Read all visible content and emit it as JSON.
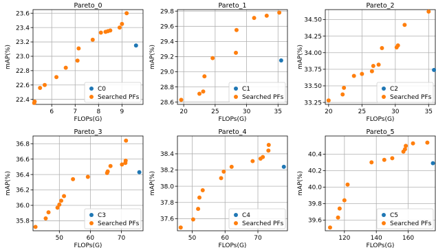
{
  "chart_data": [
    {
      "type": "scatter",
      "title": "Pareto_0",
      "xlabel": "FLOPs(G)",
      "ylabel": "mAP(%)",
      "xlim": [
        5.2,
        9.9
      ],
      "ylim": [
        22.33,
        23.65
      ],
      "xticks": [
        6,
        7,
        8,
        9
      ],
      "yticks": [
        22.4,
        22.6,
        22.8,
        23.0,
        23.2,
        23.4,
        23.6
      ],
      "ytick_labels": [
        "22.4",
        "22.6",
        "22.8",
        "23.0",
        "23.2",
        "23.4",
        "23.6"
      ],
      "grid": true,
      "legend_position": "lower right",
      "series": [
        {
          "name": "C0",
          "color": "#1f77b4",
          "points": [
            [
              9.6,
              23.15
            ]
          ]
        },
        {
          "name": "Searched PFs",
          "color": "#ff7f0e",
          "points": [
            [
              5.25,
              22.35
            ],
            [
              5.27,
              22.37
            ],
            [
              5.5,
              22.56
            ],
            [
              5.7,
              22.6
            ],
            [
              6.2,
              22.71
            ],
            [
              6.6,
              22.84
            ],
            [
              7.1,
              22.94
            ],
            [
              7.15,
              23.11
            ],
            [
              7.75,
              23.23
            ],
            [
              8.1,
              23.33
            ],
            [
              8.3,
              23.34
            ],
            [
              8.4,
              23.35
            ],
            [
              8.5,
              23.36
            ],
            [
              8.9,
              23.4
            ],
            [
              9.0,
              23.45
            ],
            [
              9.2,
              23.6
            ]
          ]
        }
      ]
    },
    {
      "type": "scatter",
      "title": "Pareto_1",
      "xlabel": "FLOPs(G)",
      "ylabel": "mAP(%)",
      "xlim": [
        19,
        36.5
      ],
      "ylim": [
        28.57,
        29.82
      ],
      "xticks": [
        20,
        25,
        30,
        35
      ],
      "yticks": [
        28.6,
        28.8,
        29.0,
        29.2,
        29.4,
        29.6,
        29.8
      ],
      "ytick_labels": [
        "28.6",
        "28.8",
        "29.0",
        "29.2",
        "29.4",
        "29.6",
        "29.8"
      ],
      "grid": true,
      "legend_position": "lower right",
      "series": [
        {
          "name": "C1",
          "color": "#1f77b4",
          "points": [
            [
              35.5,
              29.15
            ]
          ]
        },
        {
          "name": "Searched PFs",
          "color": "#ff7f0e",
          "points": [
            [
              19.6,
              28.63
            ],
            [
              22.5,
              28.71
            ],
            [
              23.1,
              28.74
            ],
            [
              23.3,
              28.94
            ],
            [
              24.6,
              29.18
            ],
            [
              28.3,
              29.25
            ],
            [
              28.4,
              29.55
            ],
            [
              31.2,
              29.71
            ],
            [
              33.2,
              29.74
            ],
            [
              35.2,
              29.78
            ]
          ]
        }
      ]
    },
    {
      "type": "scatter",
      "title": "Pareto_2",
      "xlabel": "FLOPs(G)",
      "ylabel": "mAP(%)",
      "xlim": [
        19.5,
        36
      ],
      "ylim": [
        33.22,
        34.65
      ],
      "xticks": [
        20,
        25,
        30,
        35
      ],
      "yticks": [
        33.25,
        33.5,
        33.75,
        34.0,
        34.25,
        34.5
      ],
      "ytick_labels": [
        "33.25",
        "33.50",
        "33.75",
        "34.00",
        "34.25",
        "34.50"
      ],
      "grid": true,
      "legend_position": "lower right",
      "series": [
        {
          "name": "C2",
          "color": "#1f77b4",
          "points": [
            [
              35.8,
              33.74
            ]
          ]
        },
        {
          "name": "Searched PFs",
          "color": "#ff7f0e",
          "points": [
            [
              20.0,
              33.28
            ],
            [
              22.1,
              33.37
            ],
            [
              22.3,
              33.47
            ],
            [
              23.8,
              33.65
            ],
            [
              25.0,
              33.68
            ],
            [
              26.5,
              33.72
            ],
            [
              26.7,
              33.8
            ],
            [
              27.5,
              33.82
            ],
            [
              28.0,
              34.07
            ],
            [
              30.2,
              34.08
            ],
            [
              30.4,
              34.11
            ],
            [
              31.4,
              34.42
            ],
            [
              35.0,
              34.62
            ]
          ]
        }
      ]
    },
    {
      "type": "scatter",
      "title": "Pareto_3",
      "xlabel": "FLOPs(G)",
      "ylabel": "mAP(%)",
      "xlim": [
        41.5,
        77
      ],
      "ylim": [
        35.67,
        36.9
      ],
      "xticks": [
        50,
        60,
        70
      ],
      "yticks": [
        35.8,
        36.0,
        36.2,
        36.4,
        36.6,
        36.8
      ],
      "ytick_labels": [
        "35.8",
        "36.0",
        "36.2",
        "36.4",
        "36.6",
        "36.8"
      ],
      "grid": true,
      "legend_position": "lower right",
      "series": [
        {
          "name": "C3",
          "color": "#1f77b4",
          "points": [
            [
              75.8,
              36.43
            ]
          ]
        },
        {
          "name": "Searched PFs",
          "color": "#ff7f0e",
          "points": [
            [
              42.3,
              35.72
            ],
            [
              45.6,
              35.83
            ],
            [
              46.5,
              35.91
            ],
            [
              49.4,
              35.97
            ],
            [
              50.0,
              36.01
            ],
            [
              50.6,
              36.06
            ],
            [
              51.5,
              36.12
            ],
            [
              54.4,
              36.34
            ],
            [
              59.2,
              36.37
            ],
            [
              65.4,
              36.42
            ],
            [
              65.6,
              36.44
            ],
            [
              66.5,
              36.51
            ],
            [
              70.2,
              36.53
            ],
            [
              71.3,
              36.55
            ],
            [
              71.4,
              36.58
            ],
            [
              71.5,
              36.84
            ]
          ]
        }
      ]
    },
    {
      "type": "scatter",
      "title": "Pareto_4",
      "xlabel": "FLOPs(G)",
      "ylabel": "mAP(%)",
      "xlim": [
        45.5,
        79
      ],
      "ylim": [
        37.45,
        38.62
      ],
      "xticks": [
        50,
        60,
        70
      ],
      "yticks": [
        37.6,
        37.8,
        38.0,
        38.2,
        38.4
      ],
      "ytick_labels": [
        "37.6",
        "37.8",
        "38.0",
        "38.2",
        "38.4"
      ],
      "grid": true,
      "legend_position": "lower right",
      "series": [
        {
          "name": "C4",
          "color": "#1f77b4",
          "points": [
            [
              77.9,
              38.24
            ]
          ]
        },
        {
          "name": "Searched PFs",
          "color": "#ff7f0e",
          "points": [
            [
              46.5,
              37.49
            ],
            [
              50.3,
              37.59
            ],
            [
              51.8,
              37.72
            ],
            [
              52.2,
              37.86
            ],
            [
              53.2,
              37.95
            ],
            [
              58.8,
              38.1
            ],
            [
              59.6,
              38.18
            ],
            [
              62.0,
              38.24
            ],
            [
              68.4,
              38.31
            ],
            [
              70.8,
              38.34
            ],
            [
              71.5,
              38.36
            ],
            [
              73.2,
              38.44
            ],
            [
              73.3,
              38.51
            ]
          ]
        }
      ]
    },
    {
      "type": "scatter",
      "title": "Pareto_5",
      "xlabel": "FLOPs(G)",
      "ylabel": "mAP(%)",
      "xlim": [
        108,
        177
      ],
      "ylim": [
        39.47,
        40.62
      ],
      "xticks": [
        120,
        140,
        160
      ],
      "yticks": [
        39.6,
        39.8,
        40.0,
        40.2,
        40.4
      ],
      "ytick_labels": [
        "39.6",
        "39.8",
        "40.0",
        "40.2",
        "40.4"
      ],
      "grid": true,
      "legend_position": "lower right",
      "series": [
        {
          "name": "C5",
          "color": "#1f77b4",
          "points": [
            [
              175.5,
              40.29
            ]
          ]
        },
        {
          "name": "Searched PFs",
          "color": "#ff7f0e",
          "points": [
            [
              111.0,
              39.51
            ],
            [
              116.0,
              39.63
            ],
            [
              117.0,
              39.74
            ],
            [
              120.0,
              39.84
            ],
            [
              122.0,
              40.03
            ],
            [
              137.0,
              40.3
            ],
            [
              145.0,
              40.33
            ],
            [
              150.0,
              40.35
            ],
            [
              157.0,
              40.43
            ],
            [
              158.0,
              40.46
            ],
            [
              158.5,
              40.5
            ],
            [
              163.0,
              40.53
            ],
            [
              172.0,
              40.54
            ]
          ]
        }
      ]
    }
  ]
}
